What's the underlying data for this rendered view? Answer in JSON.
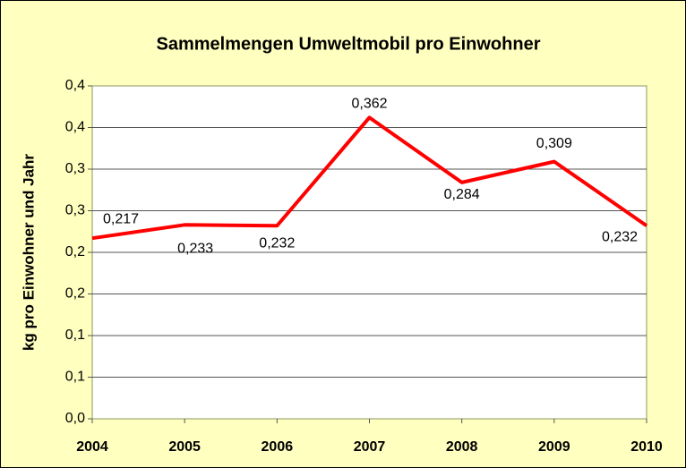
{
  "chart_data": {
    "type": "line",
    "title": "Sammelmengen Umweltmobil pro Einwohner",
    "y_label": "kg pro Einwohner und Jahr",
    "categories": [
      "2004",
      "2005",
      "2006",
      "2007",
      "2008",
      "2009",
      "2010"
    ],
    "series": [
      {
        "name": "Sammelmengen",
        "color": "#ff0000",
        "values": [
          0.217,
          0.233,
          0.232,
          0.362,
          0.284,
          0.309,
          0.232
        ],
        "value_labels": [
          "0,217",
          "0,233",
          "0,232",
          "0,362",
          "0,284",
          "0,309",
          "0,232"
        ]
      }
    ],
    "ylim": [
      0,
      0.4
    ],
    "yticks": [
      {
        "value": 0,
        "label": "0,0"
      },
      {
        "value": 0.05,
        "label": "0,1"
      },
      {
        "value": 0.1,
        "label": "0,1"
      },
      {
        "value": 0.15,
        "label": "0,2"
      },
      {
        "value": 0.2,
        "label": "0,2"
      },
      {
        "value": 0.25,
        "label": "0,3"
      },
      {
        "value": 0.3,
        "label": "0,3"
      },
      {
        "value": 0.35,
        "label": "0,4"
      },
      {
        "value": 0.4,
        "label": "0,4"
      }
    ],
    "grid": true
  }
}
